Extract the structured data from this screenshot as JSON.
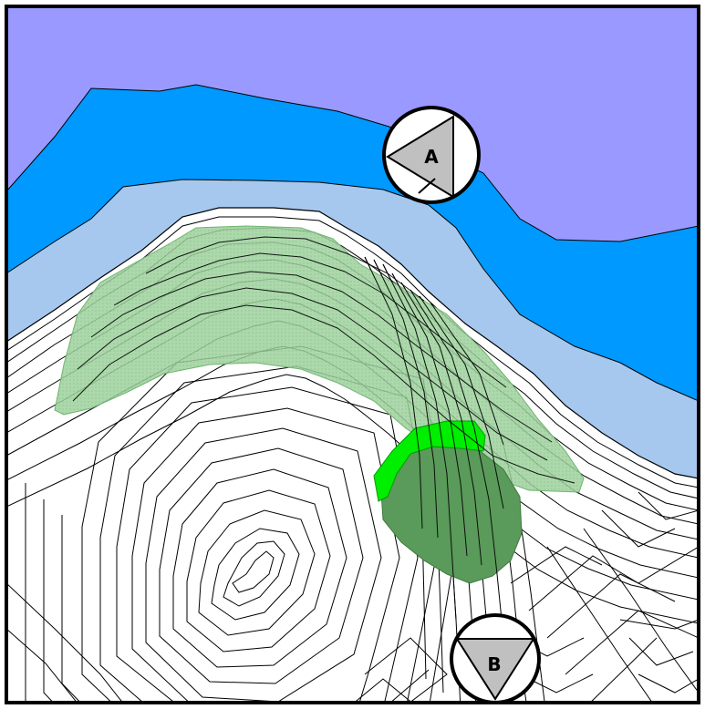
{
  "map": {
    "colors": {
      "deep_water": "#9999ff",
      "water": "#0099ff",
      "shallow_water": "#a6c8ee",
      "land": "#ffffff",
      "contour": "#000000",
      "zone_light": "#9ed19e",
      "zone_bright": "#00ee00",
      "zone_dark": "#5a9a5a",
      "marker_fill": "#c0c0c0"
    },
    "markers": [
      {
        "id": "A",
        "label": "A",
        "icon": "triangle-left-marker"
      },
      {
        "id": "B",
        "label": "B",
        "icon": "triangle-down-marker"
      }
    ]
  }
}
